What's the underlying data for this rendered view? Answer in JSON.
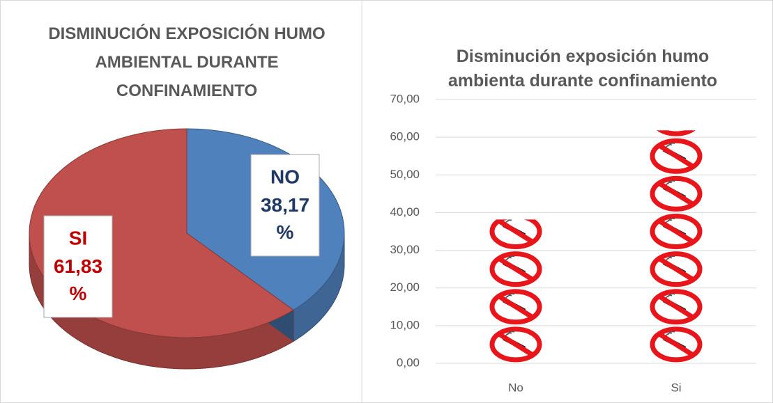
{
  "chart_data": [
    {
      "type": "pie3d",
      "title": "DISMINUCIÓN EXPOSICIÓN HUMO AMBIENTAL DURANTE CONFINAMIENTO",
      "categories": [
        "NO",
        "SI"
      ],
      "values": [
        38.17,
        61.83
      ],
      "value_labels": [
        "38,17 %",
        "61,83 %"
      ],
      "colors": [
        "#4f81bd",
        "#c0504d"
      ],
      "label_colors": [
        "#1f3864",
        "#c00000"
      ]
    },
    {
      "type": "pictograph",
      "title": "Disminución exposición humo ambienta durante confinamiento",
      "categories": [
        "No",
        "Si"
      ],
      "values": [
        38.17,
        61.83
      ],
      "ylim": [
        0,
        70
      ],
      "yticks": [
        {
          "value": 0,
          "label": "0,00"
        },
        {
          "value": 10,
          "label": "10,00"
        },
        {
          "value": 20,
          "label": "20,00"
        },
        {
          "value": 30,
          "label": "30,00"
        },
        {
          "value": 40,
          "label": "40,00"
        },
        {
          "value": 50,
          "label": "50,00"
        },
        {
          "value": 60,
          "label": "60,00"
        },
        {
          "value": 70,
          "label": "70,00"
        }
      ],
      "grid": true,
      "color": "#e8151b"
    }
  ]
}
